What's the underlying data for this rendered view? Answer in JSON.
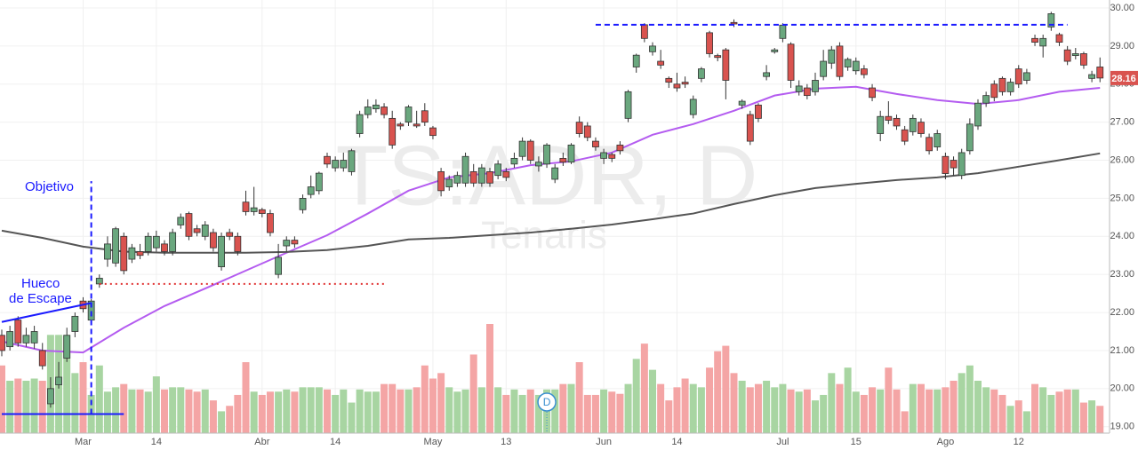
{
  "chart_data": {
    "type": "candlestick",
    "categories": [
      null,
      null,
      null,
      null,
      null,
      null,
      null,
      null,
      null,
      null,
      "Mar",
      null,
      null,
      null,
      null,
      null,
      null,
      null,
      null,
      "14",
      null,
      null,
      null,
      null,
      null,
      null,
      null,
      null,
      null,
      null,
      null,
      null,
      "Abr",
      null,
      null,
      null,
      null,
      null,
      null,
      null,
      null,
      "14",
      null,
      null,
      null,
      null,
      null,
      null,
      null,
      null,
      null,
      null,
      null,
      "May",
      null,
      null,
      null,
      null,
      null,
      null,
      null,
      null,
      "13",
      null,
      null,
      null,
      null,
      null,
      null,
      null,
      null,
      null,
      null,
      null,
      "Jun",
      null,
      null,
      null,
      null,
      null,
      null,
      null,
      null,
      "14",
      null,
      null,
      null,
      null,
      null,
      null,
      null,
      null,
      null,
      null,
      null,
      null,
      "Jul",
      null,
      null,
      null,
      null,
      null,
      null,
      null,
      null,
      "15",
      null,
      null,
      null,
      null,
      null,
      null,
      null,
      null,
      null,
      null,
      "Ago",
      null,
      null,
      null,
      null,
      null,
      null,
      null,
      null,
      "12",
      null,
      null,
      null,
      null,
      null,
      null,
      null,
      null,
      null,
      null
    ],
    "open": [
      21.4,
      21.1,
      21.8,
      21.2,
      21.2,
      21.0,
      19.6,
      20.1,
      20.8,
      21.5,
      22.3,
      21.8,
      22.75,
      23.4,
      23.3,
      24.0,
      23.4,
      23.6,
      23.6,
      23.7,
      23.8,
      23.6,
      24.3,
      24.6,
      24.2,
      24.0,
      24.1,
      23.2,
      24.1,
      24.0,
      24.9,
      24.65,
      24.7,
      24.6,
      23.0,
      23.75,
      23.9,
      24.7,
      25.1,
      25.2,
      26.1,
      25.8,
      25.8,
      25.7,
      26.7,
      27.2,
      27.35,
      27.4,
      27.1,
      26.95,
      27.0,
      26.95,
      27.3,
      26.85,
      25.7,
      25.3,
      25.4,
      25.4,
      25.7,
      25.4,
      25.7,
      25.6,
      25.7,
      25.9,
      26.1,
      26.5,
      25.85,
      25.9,
      25.5,
      26.05,
      25.95,
      27.0,
      26.9,
      26.5,
      26.05,
      26.15,
      26.4,
      27.1,
      28.45,
      29.56,
      28.85,
      28.6,
      28.15,
      28.0,
      28.05,
      27.2,
      28.15,
      29.35,
      28.75,
      28.9,
      29.62,
      27.45,
      27.2,
      27.45,
      28.2,
      28.85,
      29.2,
      29.05,
      27.8,
      27.9,
      27.8,
      28.2,
      28.55,
      29.0,
      28.45,
      28.35,
      28.4,
      27.9,
      26.7,
      27.15,
      27.1,
      26.8,
      26.75,
      27.0,
      26.6,
      26.35,
      26.1,
      26.0,
      25.6,
      26.25,
      26.9,
      27.5,
      28.0,
      28.15,
      27.8,
      28.4,
      28.1,
      29.2,
      29.0,
      29.5,
      29.3,
      28.9,
      28.75,
      28.8,
      28.15,
      28.45
    ],
    "high": [
      21.55,
      21.65,
      21.9,
      21.6,
      21.65,
      21.2,
      20.3,
      20.7,
      21.6,
      22.0,
      22.4,
      22.35,
      23.0,
      24.0,
      24.25,
      24.1,
      23.8,
      23.8,
      24.1,
      24.15,
      23.9,
      24.2,
      24.6,
      24.65,
      24.3,
      24.4,
      24.2,
      24.1,
      24.2,
      24.1,
      25.2,
      25.3,
      24.75,
      24.7,
      23.8,
      24.0,
      24.0,
      25.1,
      25.6,
      25.7,
      26.2,
      26.1,
      26.2,
      26.3,
      27.3,
      27.6,
      27.6,
      27.5,
      27.3,
      27.0,
      27.45,
      27.3,
      27.5,
      26.9,
      25.8,
      25.6,
      25.7,
      26.2,
      25.9,
      25.9,
      25.8,
      26.0,
      25.8,
      26.2,
      26.6,
      26.55,
      26.1,
      26.45,
      25.9,
      26.2,
      26.45,
      27.15,
      27.0,
      26.6,
      26.3,
      26.2,
      26.5,
      27.85,
      28.8,
      29.6,
      29.1,
      28.9,
      28.2,
      28.3,
      28.2,
      27.7,
      28.45,
      29.4,
      28.8,
      28.95,
      29.7,
      27.6,
      27.3,
      27.5,
      28.5,
      28.95,
      29.6,
      29.1,
      28.1,
      28.0,
      28.3,
      28.9,
      29.0,
      29.1,
      28.7,
      28.7,
      28.5,
      28.0,
      27.3,
      27.55,
      27.2,
      26.9,
      27.2,
      27.1,
      26.7,
      26.8,
      26.2,
      26.1,
      26.3,
      27.1,
      27.6,
      27.8,
      28.1,
      28.2,
      28.15,
      28.5,
      28.4,
      29.3,
      29.3,
      29.9,
      29.35,
      29.0,
      28.95,
      28.85,
      28.35,
      28.7
    ],
    "low": [
      20.85,
      21.0,
      21.1,
      21.1,
      21.05,
      20.5,
      19.5,
      20.0,
      20.7,
      21.35,
      22.0,
      21.75,
      22.65,
      23.2,
      23.2,
      23.0,
      23.3,
      23.4,
      23.5,
      23.6,
      23.5,
      23.5,
      24.2,
      23.9,
      24.0,
      23.9,
      23.6,
      23.1,
      23.9,
      23.5,
      24.55,
      24.55,
      24.5,
      24.0,
      22.9,
      23.6,
      23.7,
      24.6,
      25.0,
      25.1,
      25.8,
      25.7,
      25.7,
      25.6,
      26.6,
      27.1,
      27.25,
      27.1,
      26.3,
      26.8,
      26.9,
      26.85,
      26.9,
      26.55,
      25.05,
      25.2,
      25.3,
      25.3,
      25.3,
      25.3,
      25.3,
      25.5,
      25.45,
      25.8,
      26.0,
      25.9,
      25.7,
      25.8,
      25.4,
      25.85,
      25.9,
      26.6,
      26.5,
      26.25,
      25.9,
      25.95,
      26.15,
      27.0,
      28.3,
      29.1,
      28.75,
      28.4,
      27.9,
      27.8,
      27.9,
      27.1,
      28.05,
      28.7,
      28.6,
      27.6,
      29.5,
      27.35,
      26.4,
      27.0,
      28.1,
      28.8,
      29.1,
      27.9,
      27.7,
      27.6,
      27.7,
      28.1,
      28.4,
      28.1,
      28.35,
      28.25,
      28.15,
      27.55,
      26.5,
      26.95,
      26.8,
      26.4,
      26.65,
      26.6,
      26.15,
      26.25,
      25.5,
      25.6,
      25.5,
      26.15,
      26.8,
      27.4,
      27.55,
      27.7,
      27.7,
      27.9,
      28.0,
      29.0,
      28.7,
      29.4,
      29.0,
      28.5,
      28.65,
      28.4,
      28.05,
      28.05
    ],
    "close": [
      21.0,
      21.5,
      21.2,
      21.4,
      21.5,
      20.6,
      20.0,
      20.3,
      21.4,
      21.9,
      22.1,
      22.3,
      22.9,
      23.8,
      24.2,
      23.1,
      23.7,
      23.5,
      24.0,
      24.0,
      23.6,
      24.1,
      24.5,
      24.0,
      24.1,
      24.3,
      23.7,
      24.0,
      24.0,
      23.6,
      24.65,
      24.75,
      24.6,
      24.1,
      23.45,
      23.9,
      23.8,
      25.0,
      25.3,
      25.66,
      25.9,
      26.0,
      26.0,
      26.25,
      27.2,
      27.4,
      27.45,
      27.2,
      26.4,
      26.9,
      27.4,
      26.9,
      27.0,
      26.65,
      25.2,
      25.5,
      25.6,
      26.1,
      25.4,
      25.8,
      25.4,
      25.9,
      25.55,
      26.05,
      26.5,
      26.0,
      25.95,
      26.4,
      25.8,
      25.95,
      26.4,
      26.7,
      26.6,
      26.35,
      26.2,
      26.05,
      26.25,
      27.8,
      28.76,
      29.2,
      29.0,
      28.5,
      28.05,
      27.9,
      28.0,
      27.6,
      28.4,
      28.8,
      28.7,
      28.1,
      29.58,
      27.55,
      26.5,
      27.1,
      28.3,
      28.9,
      29.55,
      28.1,
      27.95,
      27.7,
      28.1,
      28.6,
      28.9,
      28.2,
      28.65,
      28.6,
      28.25,
      27.65,
      27.15,
      27.05,
      26.9,
      26.5,
      27.1,
      26.7,
      26.25,
      26.7,
      25.65,
      25.8,
      26.2,
      26.95,
      27.5,
      27.7,
      27.65,
      27.8,
      28.05,
      28.0,
      28.3,
      29.1,
      29.2,
      29.85,
      29.1,
      28.6,
      28.8,
      28.5,
      28.25,
      28.16
    ],
    "volume": [
      62,
      48,
      50,
      48,
      50,
      48,
      90,
      90,
      90,
      55,
      65,
      35,
      62,
      38,
      42,
      45,
      40,
      40,
      38,
      52,
      40,
      42,
      42,
      40,
      38,
      40,
      30,
      20,
      25,
      35,
      65,
      38,
      35,
      38,
      38,
      40,
      38,
      42,
      42,
      42,
      40,
      35,
      40,
      28,
      40,
      38,
      38,
      45,
      45,
      40,
      40,
      42,
      62,
      50,
      55,
      42,
      38,
      40,
      72,
      42,
      100,
      42,
      35,
      40,
      35,
      40,
      35,
      40,
      40,
      45,
      45,
      65,
      35,
      35,
      40,
      38,
      36,
      45,
      68,
      82,
      58,
      45,
      30,
      42,
      50,
      45,
      42,
      60,
      75,
      80,
      55,
      48,
      42,
      45,
      48,
      42,
      45,
      40,
      38,
      40,
      30,
      35,
      55,
      45,
      60,
      38,
      35,
      42,
      40,
      60,
      40,
      20,
      45,
      45,
      40,
      40,
      42,
      48,
      55,
      62,
      48,
      42,
      40,
      35,
      25,
      30,
      20,
      45,
      42,
      35,
      38,
      40,
      40,
      28,
      30,
      25
    ],
    "up_color": "#6aa77e",
    "down_color": "#d9534f",
    "up_volume_color": "#a8d5a2",
    "down_volume_color": "#f4a5a5",
    "ma": [
      {
        "color": "#b45cf0",
        "x": [
          0,
          5,
          10,
          15,
          20,
          25,
          30,
          35,
          40,
          45,
          50,
          55,
          60,
          65,
          70,
          75,
          80,
          85,
          90,
          95,
          100,
          105,
          110,
          115,
          120,
          125,
          130,
          135
        ],
        "values": [
          21.24,
          21.0,
          20.95,
          21.6,
          22.17,
          22.63,
          23.1,
          23.57,
          24.03,
          24.6,
          25.2,
          25.55,
          25.66,
          25.87,
          25.97,
          26.2,
          26.67,
          26.95,
          27.3,
          27.7,
          27.88,
          27.93,
          27.74,
          27.58,
          27.48,
          27.58,
          27.8,
          27.9
        ]
      },
      {
        "color": "#555555",
        "x": [
          0,
          5,
          10,
          15,
          20,
          25,
          30,
          35,
          40,
          45,
          50,
          55,
          60,
          65,
          70,
          75,
          80,
          85,
          90,
          95,
          100,
          105,
          110,
          115,
          120,
          125,
          130,
          135
        ],
        "values": [
          24.15,
          23.96,
          23.73,
          23.6,
          23.57,
          23.57,
          23.57,
          23.59,
          23.64,
          23.75,
          23.92,
          23.96,
          24.03,
          24.1,
          24.2,
          24.31,
          24.45,
          24.6,
          24.85,
          25.08,
          25.27,
          25.38,
          25.48,
          25.55,
          25.66,
          25.83,
          26.0,
          26.18
        ]
      }
    ],
    "ylim": [
      18.83,
      30.21
    ],
    "yticks": [
      {
        "value": 19,
        "label": "19.00"
      },
      {
        "value": 20,
        "label": "20.00"
      },
      {
        "value": 21,
        "label": "21.00"
      },
      {
        "value": 22,
        "label": "22.00"
      },
      {
        "value": 23,
        "label": "23.00"
      },
      {
        "value": 24,
        "label": "24.00"
      },
      {
        "value": 25,
        "label": "25.00"
      },
      {
        "value": 26,
        "label": "26.00"
      },
      {
        "value": 27,
        "label": "27.00"
      },
      {
        "value": 28,
        "label": "28.00"
      },
      {
        "value": 29,
        "label": "29.00"
      },
      {
        "value": 30,
        "label": "30.00"
      }
    ],
    "grid": true,
    "last_price": 28.16,
    "last_price_color": "#d9534f",
    "watermark": [
      "TS:ADR, D",
      "Tenaris"
    ],
    "events": [
      {
        "x": 67,
        "label": "D"
      }
    ],
    "annotations": {
      "lines": [
        {
          "x": [
            73,
            131
          ],
          "y": [
            29.56,
            29.56
          ],
          "color": "#1a1aff",
          "dash": "dashed"
        },
        {
          "x": [
            12,
            47
          ],
          "y": [
            22.75,
            22.75
          ],
          "color": "#e03030",
          "dash": "dotted"
        },
        {
          "x": [
            11,
            11
          ],
          "y": [
            19.33,
            25.45
          ],
          "color": "#1a1aff",
          "dash": "dashed"
        },
        {
          "x": [
            0,
            11
          ],
          "y": [
            21.75,
            22.25
          ],
          "color": "#1a1aff",
          "dash": "solid"
        },
        {
          "x": [
            0,
            15
          ],
          "y": [
            19.33,
            19.33
          ],
          "color": "#1a1aff",
          "dash": "solid"
        }
      ],
      "texts": [
        "Objetivo",
        "Hueco",
        "de Escape"
      ]
    }
  }
}
